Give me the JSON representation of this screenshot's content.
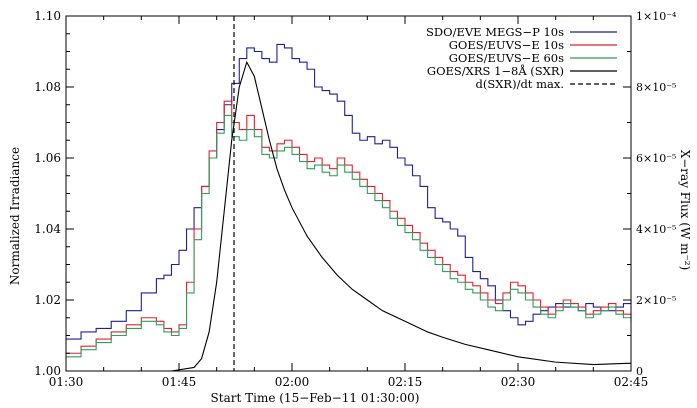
{
  "chart_data": {
    "type": "line",
    "xlabel": "Start Time (15−Feb−11 01:30:00)",
    "ylabel": "Normalized Irradiance",
    "y2label": "X−ray Flux (W m⁻²)",
    "x_unit": "minutes after 01:30 UT",
    "xlim": [
      0,
      75
    ],
    "ylim": [
      1.0,
      1.1
    ],
    "y2lim": [
      0,
      0.0001
    ],
    "x_ticks": [
      0,
      15,
      30,
      45,
      60,
      75
    ],
    "x_tick_labels": [
      "01:30",
      "01:45",
      "02:00",
      "02:15",
      "02:30",
      "02:45"
    ],
    "y_ticks": [
      1.0,
      1.02,
      1.04,
      1.06,
      1.08,
      1.1
    ],
    "y_tick_labels": [
      "1.00",
      "1.02",
      "1.04",
      "1.06",
      "1.08",
      "1.10"
    ],
    "y2_ticks": [
      0,
      2e-05,
      4e-05,
      6e-05,
      8e-05,
      0.0001
    ],
    "y2_tick_labels": [
      "0",
      "2×10⁻⁵",
      "4×10⁻⁵",
      "6×10⁻⁵",
      "8×10⁻⁵",
      "1×10⁻⁴"
    ],
    "legend": "top-right",
    "series": [
      {
        "name": "SDO/EVE MEGS−P 10s",
        "color": "#1f1f9a",
        "axis": "left",
        "style": "step",
        "x": [
          0,
          2,
          4,
          6,
          8,
          10,
          12,
          13,
          14,
          15,
          16,
          17,
          18,
          19,
          20,
          21,
          22,
          23,
          24,
          25,
          26,
          27,
          28,
          29,
          30,
          31,
          32,
          33,
          34,
          35,
          36,
          37,
          38,
          39,
          40,
          41,
          42,
          43,
          44,
          45,
          46,
          47,
          48,
          49,
          50,
          51,
          52,
          53,
          54,
          55,
          56,
          57,
          58,
          59,
          60,
          61,
          62,
          63,
          64,
          65,
          66,
          67,
          68,
          69,
          70,
          71,
          72,
          73,
          74,
          75
        ],
        "y": [
          1.009,
          1.011,
          1.012,
          1.014,
          1.017,
          1.022,
          1.026,
          1.027,
          1.03,
          1.034,
          1.04,
          1.046,
          1.052,
          1.06,
          1.068,
          1.075,
          1.081,
          1.088,
          1.091,
          1.09,
          1.088,
          1.087,
          1.092,
          1.091,
          1.088,
          1.087,
          1.085,
          1.08,
          1.079,
          1.078,
          1.076,
          1.072,
          1.067,
          1.065,
          1.066,
          1.064,
          1.065,
          1.063,
          1.06,
          1.058,
          1.055,
          1.052,
          1.046,
          1.043,
          1.042,
          1.04,
          1.038,
          1.032,
          1.028,
          1.026,
          1.024,
          1.02,
          1.017,
          1.015,
          1.013,
          1.014,
          1.016,
          1.017,
          1.018,
          1.019,
          1.018,
          1.018,
          1.017,
          1.019,
          1.018,
          1.017,
          1.017,
          1.018,
          1.019,
          1.02
        ]
      },
      {
        "name": "GOES/EUVS−E 10s",
        "color": "#e0222a",
        "axis": "left",
        "style": "step",
        "x": [
          0,
          2,
          4,
          6,
          8,
          10,
          12,
          13,
          14,
          15,
          16,
          17,
          18,
          19,
          20,
          21,
          22,
          23,
          24,
          25,
          26,
          27,
          28,
          29,
          30,
          31,
          32,
          33,
          34,
          35,
          36,
          37,
          38,
          39,
          40,
          41,
          42,
          43,
          44,
          45,
          46,
          47,
          48,
          49,
          50,
          51,
          52,
          53,
          54,
          55,
          56,
          57,
          58,
          59,
          60,
          61,
          62,
          63,
          64,
          65,
          66,
          67,
          68,
          69,
          70,
          71,
          72,
          73,
          74,
          75
        ],
        "y": [
          1.005,
          1.007,
          1.009,
          1.011,
          1.013,
          1.015,
          1.014,
          1.012,
          1.011,
          1.013,
          1.025,
          1.04,
          1.052,
          1.062,
          1.07,
          1.076,
          1.07,
          1.068,
          1.072,
          1.068,
          1.063,
          1.062,
          1.064,
          1.065,
          1.063,
          1.061,
          1.059,
          1.06,
          1.058,
          1.057,
          1.06,
          1.058,
          1.056,
          1.054,
          1.052,
          1.05,
          1.048,
          1.045,
          1.043,
          1.041,
          1.039,
          1.036,
          1.034,
          1.032,
          1.03,
          1.028,
          1.027,
          1.025,
          1.024,
          1.022,
          1.02,
          1.019,
          1.022,
          1.025,
          1.024,
          1.022,
          1.02,
          1.018,
          1.016,
          1.018,
          1.02,
          1.019,
          1.018,
          1.016,
          1.017,
          1.018,
          1.019,
          1.017,
          1.016,
          1.015
        ]
      },
      {
        "name": "GOES/EUVS−E 60s",
        "color": "#2e9e5a",
        "axis": "left",
        "style": "step",
        "x": [
          0,
          2,
          4,
          6,
          8,
          10,
          12,
          13,
          14,
          15,
          16,
          17,
          18,
          19,
          20,
          21,
          22,
          23,
          24,
          25,
          26,
          27,
          28,
          29,
          30,
          31,
          32,
          33,
          34,
          35,
          36,
          37,
          38,
          39,
          40,
          41,
          42,
          43,
          44,
          45,
          46,
          47,
          48,
          49,
          50,
          51,
          52,
          53,
          54,
          55,
          56,
          57,
          58,
          59,
          60,
          61,
          62,
          63,
          64,
          65,
          66,
          67,
          68,
          69,
          70,
          71,
          72,
          73,
          74,
          75
        ],
        "y": [
          1.004,
          1.006,
          1.008,
          1.01,
          1.012,
          1.014,
          1.013,
          1.011,
          1.01,
          1.012,
          1.022,
          1.037,
          1.05,
          1.06,
          1.067,
          1.072,
          1.066,
          1.065,
          1.068,
          1.066,
          1.061,
          1.06,
          1.062,
          1.063,
          1.061,
          1.059,
          1.057,
          1.058,
          1.056,
          1.055,
          1.058,
          1.056,
          1.054,
          1.052,
          1.05,
          1.048,
          1.046,
          1.043,
          1.041,
          1.039,
          1.037,
          1.034,
          1.032,
          1.03,
          1.028,
          1.026,
          1.025,
          1.023,
          1.022,
          1.02,
          1.018,
          1.017,
          1.02,
          1.023,
          1.022,
          1.02,
          1.018,
          1.016,
          1.015,
          1.017,
          1.019,
          1.018,
          1.017,
          1.015,
          1.016,
          1.017,
          1.018,
          1.016,
          1.015,
          1.014
        ]
      },
      {
        "name": "GOES/XRS 1−8Å (SXR)",
        "color": "#000000",
        "axis": "right",
        "style": "line",
        "x": [
          0,
          14,
          17,
          18,
          19,
          20,
          21,
          22,
          23,
          24,
          25,
          26,
          27,
          28,
          29,
          30,
          32,
          34,
          36,
          38,
          40,
          42,
          45,
          48,
          50,
          53,
          56,
          60,
          65,
          70,
          75
        ],
        "y": [
          0,
          0,
          1e-06,
          3.5e-06,
          1.1e-05,
          2.5e-05,
          4.5e-05,
          6.5e-05,
          8e-05,
          8.7e-05,
          8.3e-05,
          7.4e-05,
          6.5e-05,
          5.7e-05,
          5.1e-05,
          4.6e-05,
          3.8e-05,
          3.2e-05,
          2.7e-05,
          2.3e-05,
          2e-05,
          1.7e-05,
          1.4e-05,
          1.1e-05,
          9.5e-06,
          7.5e-06,
          6e-06,
          4e-06,
          2.5e-06,
          1.8e-06,
          2.2e-06
        ]
      }
    ],
    "vline": {
      "name": "d(SXR)/dt max.",
      "x": 22.3,
      "color": "#000000",
      "style": "dashed"
    }
  }
}
